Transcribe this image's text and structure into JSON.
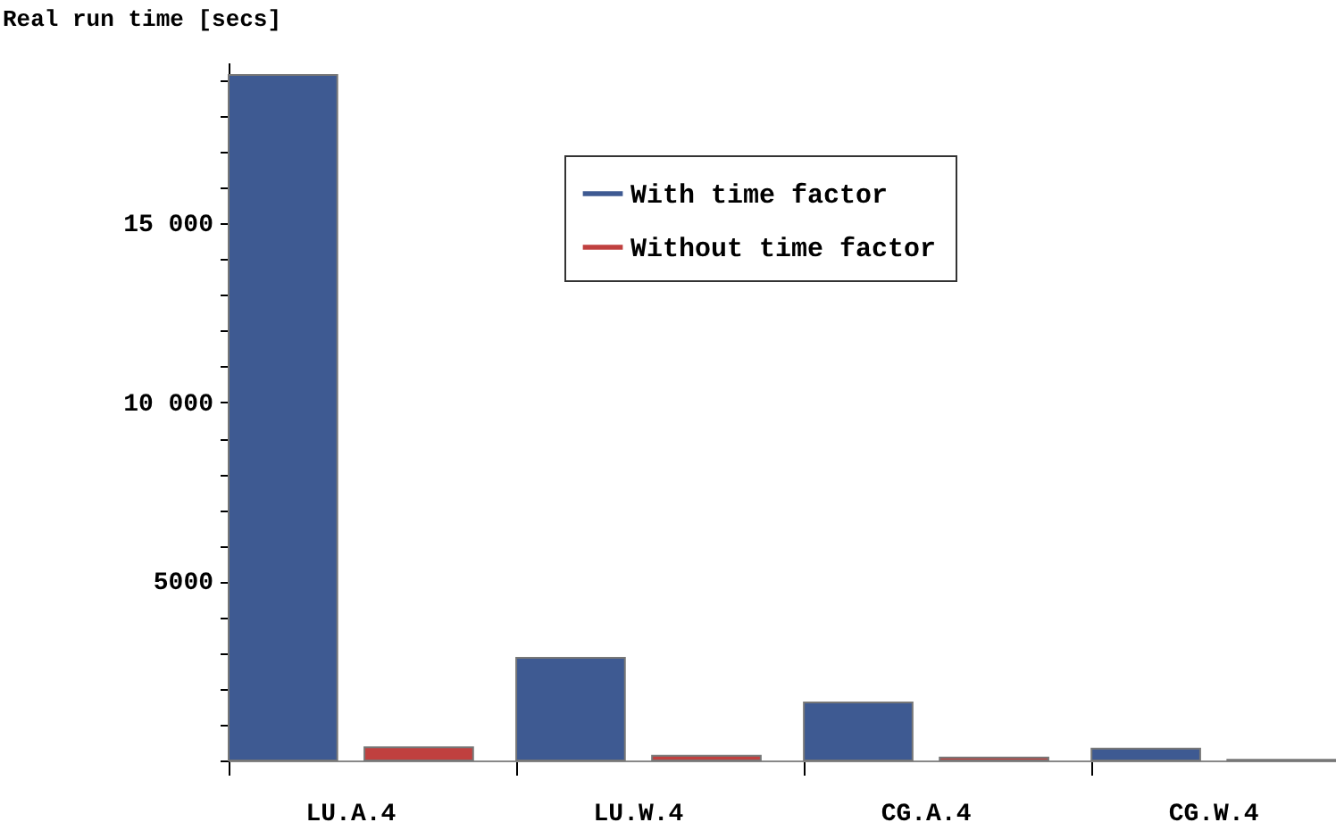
{
  "chart_data": {
    "type": "bar",
    "ylabel": "Real run time [secs]",
    "categories": [
      "LU.A.4",
      "LU.W.4",
      "CG.A.4",
      "CG.W.4"
    ],
    "series": [
      {
        "name": "With time factor",
        "color": "#3e5a92",
        "values": [
          19150,
          2870,
          1620,
          330
        ]
      },
      {
        "name": "Without time factor",
        "color": "#c0403f",
        "values": [
          370,
          130,
          80,
          20
        ]
      }
    ],
    "ylim": [
      0,
      19500
    ],
    "yticks": [
      {
        "value": 0,
        "label": null
      },
      {
        "value": 1000,
        "label": null
      },
      {
        "value": 2000,
        "label": null
      },
      {
        "value": 3000,
        "label": null
      },
      {
        "value": 4000,
        "label": null
      },
      5000,
      {
        "value": 6000,
        "label": null
      },
      {
        "value": 7000,
        "label": null
      },
      {
        "value": 8000,
        "label": null
      },
      {
        "value": 9000,
        "label": null
      },
      {
        "value": 10000,
        "label": "10 000"
      },
      {
        "value": 11000,
        "label": null
      },
      {
        "value": 12000,
        "label": null
      },
      {
        "value": 13000,
        "label": null
      },
      {
        "value": 14000,
        "label": null
      },
      {
        "value": 15000,
        "label": "15 000"
      },
      {
        "value": 16000,
        "label": null
      },
      {
        "value": 17000,
        "label": null
      },
      {
        "value": 18000,
        "label": null
      },
      {
        "value": 19000,
        "label": null
      }
    ],
    "legend": "top right"
  }
}
